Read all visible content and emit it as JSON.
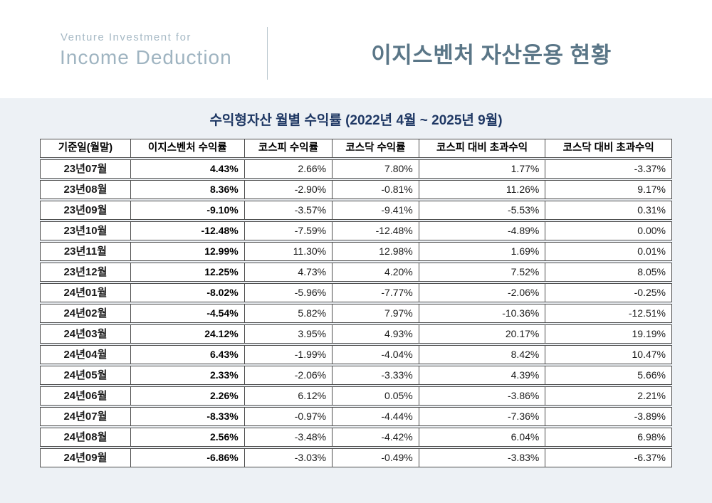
{
  "page": {
    "background_color": "#edf1f5",
    "header_background_color": "#ffffff"
  },
  "header": {
    "brand_line1": "Venture Investment for",
    "brand_line2": "Income Deduction",
    "brand_color": "#a6b9c5",
    "title": "이지스벤처 자산운용 현황",
    "title_color": "#5a7687"
  },
  "section": {
    "subtitle": "수익형자산 월별 수익률 (2022년 4월 ~ 2025년 9월)",
    "subtitle_color": "#1f3864"
  },
  "table": {
    "columns": [
      "기준일(월말)",
      "이지스벤처 수익률",
      "코스피 수익률",
      "코스닥 수익률",
      "코스피 대비 초과수익",
      "코스닥 대비 초과수익"
    ],
    "rows": [
      {
        "month": "23년07월",
        "values": [
          "4.43%",
          "2.66%",
          "7.80%",
          "1.77%",
          "-3.37%"
        ]
      },
      {
        "month": "23년08월",
        "values": [
          "8.36%",
          "-2.90%",
          "-0.81%",
          "11.26%",
          "9.17%"
        ]
      },
      {
        "month": "23년09월",
        "values": [
          "-9.10%",
          "-3.57%",
          "-9.41%",
          "-5.53%",
          "0.31%"
        ]
      },
      {
        "month": "23년10월",
        "values": [
          "-12.48%",
          "-7.59%",
          "-12.48%",
          "-4.89%",
          "0.00%"
        ]
      },
      {
        "month": "23년11월",
        "values": [
          "12.99%",
          "11.30%",
          "12.98%",
          "1.69%",
          "0.01%"
        ]
      },
      {
        "month": "23년12월",
        "values": [
          "12.25%",
          "4.73%",
          "4.20%",
          "7.52%",
          "8.05%"
        ]
      },
      {
        "month": "24년01월",
        "values": [
          "-8.02%",
          "-5.96%",
          "-7.77%",
          "-2.06%",
          "-0.25%"
        ]
      },
      {
        "month": "24년02월",
        "values": [
          "-4.54%",
          "5.82%",
          "7.97%",
          "-10.36%",
          "-12.51%"
        ]
      },
      {
        "month": "24년03월",
        "values": [
          "24.12%",
          "3.95%",
          "4.93%",
          "20.17%",
          "19.19%"
        ]
      },
      {
        "month": "24년04월",
        "values": [
          "6.43%",
          "-1.99%",
          "-4.04%",
          "8.42%",
          "10.47%"
        ]
      },
      {
        "month": "24년05월",
        "values": [
          "2.33%",
          "-2.06%",
          "-3.33%",
          "4.39%",
          "5.66%"
        ]
      },
      {
        "month": "24년06월",
        "values": [
          "2.26%",
          "6.12%",
          "0.05%",
          "-3.86%",
          "2.21%"
        ]
      },
      {
        "month": "24년07월",
        "values": [
          "-8.33%",
          "-0.97%",
          "-4.44%",
          "-7.36%",
          "-3.89%"
        ]
      },
      {
        "month": "24년08월",
        "values": [
          "2.56%",
          "-3.48%",
          "-4.42%",
          "6.04%",
          "6.98%"
        ]
      },
      {
        "month": "24년09월",
        "values": [
          "-6.86%",
          "-3.03%",
          "-0.49%",
          "-3.83%",
          "-6.37%"
        ]
      }
    ]
  }
}
